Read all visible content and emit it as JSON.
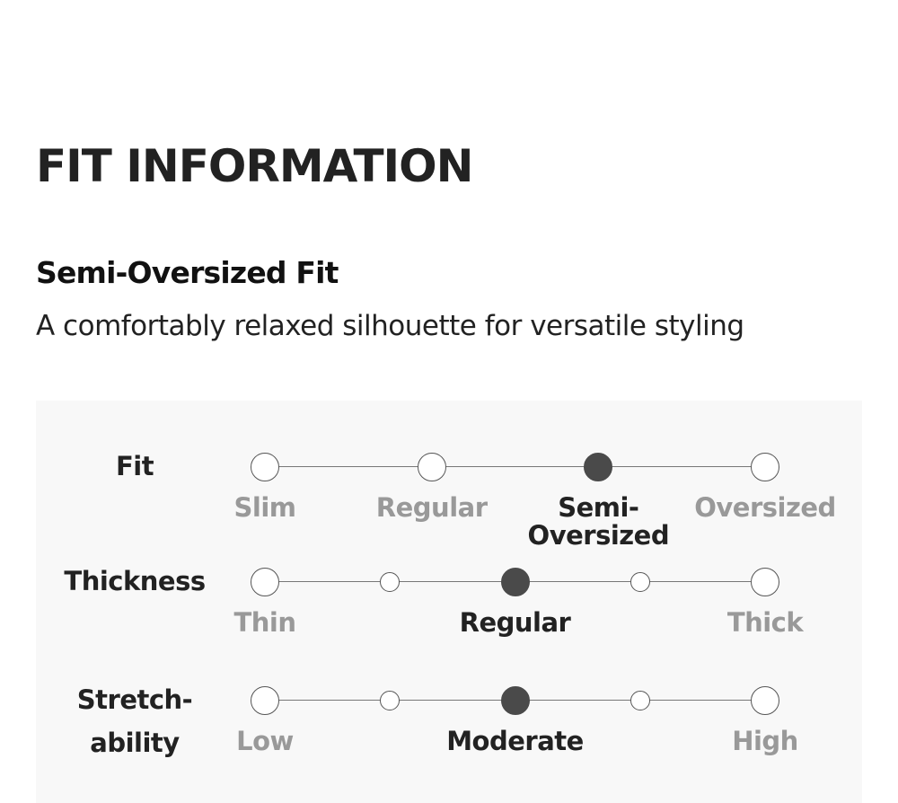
{
  "title": "FIT INFORMATION",
  "fit_name": "Semi-Oversized Fit",
  "fit_description": "A comfortably relaxed silhouette for versatile styling",
  "colors": {
    "selected": "#4a4a4a",
    "unselected_text": "#999999",
    "panel_bg": "#f8f8f8"
  },
  "scales": [
    {
      "label": "Fit",
      "steps": 4,
      "selected_step": 2,
      "options": [
        {
          "text": "Slim",
          "step": 0
        },
        {
          "text": "Regular",
          "step": 1
        },
        {
          "text": "Semi-\nOversized",
          "step": 2
        },
        {
          "text": "Oversized",
          "step": 3
        }
      ]
    },
    {
      "label": "Thickness",
      "steps": 5,
      "selected_step": 2,
      "options": [
        {
          "text": "Thin",
          "step": 0
        },
        {
          "text": "Regular",
          "step": 2
        },
        {
          "text": "Thick",
          "step": 4
        }
      ]
    },
    {
      "label": "Stretch-\nability",
      "steps": 5,
      "selected_step": 2,
      "options": [
        {
          "text": "Low",
          "step": 0
        },
        {
          "text": "Moderate",
          "step": 2
        },
        {
          "text": "High",
          "step": 4
        }
      ]
    }
  ]
}
